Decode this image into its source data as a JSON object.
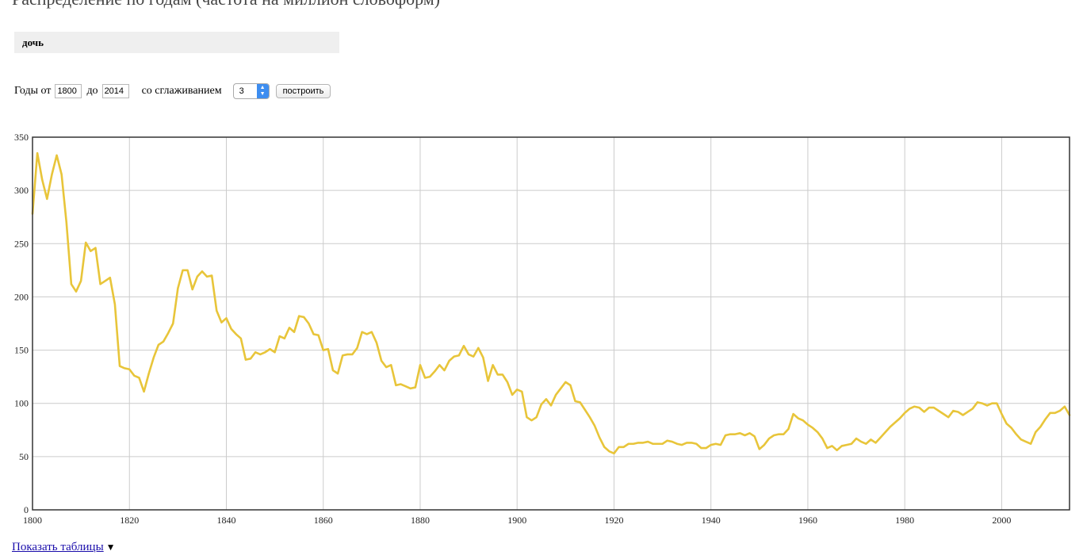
{
  "page": {
    "title": "Распределение по годам (частота на миллион словоформ)",
    "query": "дочь"
  },
  "controls": {
    "years_from_label": "Годы от",
    "year_from": "1800",
    "to_label": "до",
    "year_to": "2014",
    "smoothing_label": "со сглаживанием",
    "smoothing_value": "3",
    "build_button": "построить"
  },
  "footer": {
    "show_tables_link": "Показать таблицы",
    "expand_icon": "▼"
  },
  "colors": {
    "line": "#e8c53a",
    "grid": "#cccccc",
    "frame": "#333333"
  },
  "chart_data": {
    "type": "line",
    "xlim": [
      1800,
      2014
    ],
    "ylim": [
      0,
      350
    ],
    "grid": true,
    "x_ticks": [
      1800,
      1820,
      1840,
      1860,
      1880,
      1900,
      1920,
      1940,
      1960,
      1980,
      2000
    ],
    "y_ticks": [
      0,
      50,
      100,
      150,
      200,
      250,
      300,
      350
    ],
    "x": [
      1800,
      1801,
      1802,
      1803,
      1804,
      1805,
      1806,
      1807,
      1808,
      1809,
      1810,
      1811,
      1812,
      1813,
      1814,
      1815,
      1816,
      1817,
      1818,
      1819,
      1820,
      1821,
      1822,
      1823,
      1824,
      1825,
      1826,
      1827,
      1828,
      1829,
      1830,
      1831,
      1832,
      1833,
      1834,
      1835,
      1836,
      1837,
      1838,
      1839,
      1840,
      1841,
      1842,
      1843,
      1844,
      1845,
      1846,
      1847,
      1848,
      1849,
      1850,
      1851,
      1852,
      1853,
      1854,
      1855,
      1856,
      1857,
      1858,
      1859,
      1860,
      1861,
      1862,
      1863,
      1864,
      1865,
      1866,
      1867,
      1868,
      1869,
      1870,
      1871,
      1872,
      1873,
      1874,
      1875,
      1876,
      1877,
      1878,
      1879,
      1880,
      1881,
      1882,
      1883,
      1884,
      1885,
      1886,
      1887,
      1888,
      1889,
      1890,
      1891,
      1892,
      1893,
      1894,
      1895,
      1896,
      1897,
      1898,
      1899,
      1900,
      1901,
      1902,
      1903,
      1904,
      1905,
      1906,
      1907,
      1908,
      1909,
      1910,
      1911,
      1912,
      1913,
      1914,
      1915,
      1916,
      1917,
      1918,
      1919,
      1920,
      1921,
      1922,
      1923,
      1924,
      1925,
      1926,
      1927,
      1928,
      1929,
      1930,
      1931,
      1932,
      1933,
      1934,
      1935,
      1936,
      1937,
      1938,
      1939,
      1940,
      1941,
      1942,
      1943,
      1944,
      1945,
      1946,
      1947,
      1948,
      1949,
      1950,
      1951,
      1952,
      1953,
      1954,
      1955,
      1956,
      1957,
      1958,
      1959,
      1960,
      1961,
      1962,
      1963,
      1964,
      1965,
      1966,
      1967,
      1968,
      1969,
      1970,
      1971,
      1972,
      1973,
      1974,
      1975,
      1976,
      1977,
      1978,
      1979,
      1980,
      1981,
      1982,
      1983,
      1984,
      1985,
      1986,
      1987,
      1988,
      1989,
      1990,
      1991,
      1992,
      1993,
      1994,
      1995,
      1996,
      1997,
      1998,
      1999,
      2000,
      2001,
      2002,
      2003,
      2004,
      2005,
      2006,
      2007,
      2008,
      2009,
      2010,
      2011,
      2012,
      2013,
      2014
    ],
    "series": [
      {
        "values": [
          278,
          335,
          310,
          292,
          315,
          333,
          315,
          270,
          212,
          205,
          215,
          251,
          243,
          246,
          212,
          215,
          218,
          193,
          135,
          133,
          132,
          126,
          124,
          111,
          128,
          143,
          155,
          158,
          166,
          175,
          208,
          225,
          225,
          207,
          219,
          224,
          219,
          220,
          187,
          176,
          180,
          170,
          165,
          161,
          141,
          142,
          148,
          146,
          148,
          151,
          148,
          163,
          161,
          171,
          167,
          182,
          181,
          175,
          165,
          164,
          150,
          151,
          131,
          128,
          145,
          146,
          146,
          152,
          167,
          165,
          167,
          157,
          140,
          134,
          136,
          117,
          118,
          116,
          114,
          115,
          136,
          124,
          125,
          130,
          136,
          131,
          140,
          144,
          145,
          154,
          146,
          144,
          152,
          143,
          121,
          136,
          127,
          127,
          120,
          108,
          113,
          111,
          87,
          84,
          87,
          99,
          104,
          98,
          108,
          114,
          120,
          117,
          102,
          101,
          94,
          87,
          79,
          68,
          59,
          55,
          53,
          59,
          59,
          62,
          62,
          63,
          63,
          64,
          62,
          62,
          62,
          65,
          64,
          62,
          61,
          63,
          63,
          62,
          58,
          58,
          61,
          62,
          61,
          70,
          71,
          71,
          72,
          70,
          72,
          69,
          57,
          61,
          67,
          70,
          71,
          71,
          76,
          90,
          86,
          84,
          80,
          77,
          73,
          67,
          58,
          60,
          56,
          60,
          61,
          62,
          67,
          64,
          62,
          66,
          63,
          68,
          73,
          78,
          82,
          86,
          91,
          95,
          97,
          96,
          92,
          96,
          96,
          93,
          90,
          87,
          93,
          92,
          89,
          92,
          95,
          101,
          100,
          98,
          100,
          100,
          90,
          81,
          77,
          71,
          66,
          64,
          62,
          73,
          78,
          85,
          91,
          91,
          93,
          97,
          89
        ]
      }
    ]
  }
}
